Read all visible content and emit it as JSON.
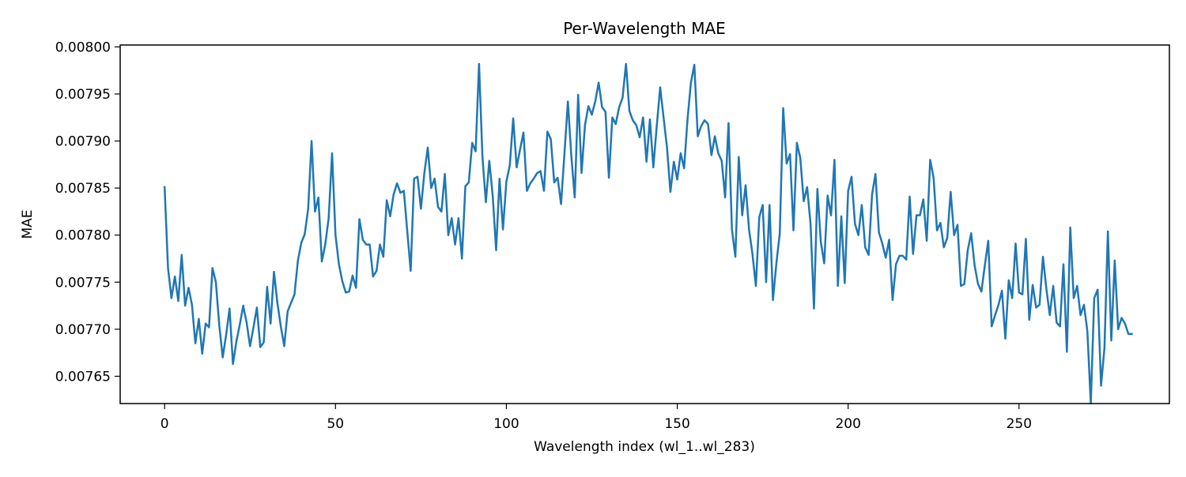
{
  "chart_data": {
    "type": "line",
    "title": "Per-Wavelength MAE",
    "xlabel": "Wavelength index (wl_1..wl_283)",
    "ylabel": "MAE",
    "xlim": [
      -13,
      294
    ],
    "ylim": [
      0.007621,
      0.008002
    ],
    "xticks": [
      0,
      50,
      100,
      150,
      200,
      250
    ],
    "xtick_labels": [
      "0",
      "50",
      "100",
      "150",
      "200",
      "250"
    ],
    "yticks": [
      0.00765,
      0.0077,
      0.00775,
      0.0078,
      0.00785,
      0.0079,
      0.00795,
      0.008
    ],
    "ytick_labels": [
      "0.00765",
      "0.00770",
      "0.00775",
      "0.00780",
      "0.00785",
      "0.00790",
      "0.00795",
      "0.00800"
    ],
    "grid": false,
    "legend": null,
    "series": [
      {
        "color": "#1f77b4",
        "x_start": 0,
        "x_step": 1,
        "values": [
          0.007851,
          0.007765,
          0.007733,
          0.007756,
          0.00773,
          0.007779,
          0.007725,
          0.007744,
          0.007726,
          0.007685,
          0.007711,
          0.007674,
          0.007706,
          0.007702,
          0.007765,
          0.00775,
          0.007704,
          0.00767,
          0.007694,
          0.007722,
          0.007663,
          0.007687,
          0.007705,
          0.007725,
          0.007707,
          0.007682,
          0.007702,
          0.007723,
          0.007681,
          0.007686,
          0.007745,
          0.007706,
          0.007761,
          0.007728,
          0.007703,
          0.007682,
          0.007719,
          0.007728,
          0.007737,
          0.007773,
          0.007792,
          0.007801,
          0.007828,
          0.0079,
          0.007825,
          0.00784,
          0.007772,
          0.00779,
          0.007818,
          0.007887,
          0.0078,
          0.007769,
          0.007751,
          0.007739,
          0.00774,
          0.007757,
          0.007744,
          0.007817,
          0.007795,
          0.00779,
          0.00779,
          0.007756,
          0.007762,
          0.00779,
          0.007777,
          0.007837,
          0.00782,
          0.007843,
          0.007855,
          0.007845,
          0.007847,
          0.007804,
          0.007762,
          0.00786,
          0.007862,
          0.007828,
          0.007866,
          0.007893,
          0.00785,
          0.00786,
          0.00783,
          0.007825,
          0.007865,
          0.0078,
          0.007818,
          0.00779,
          0.007818,
          0.007775,
          0.007852,
          0.007856,
          0.007898,
          0.007889,
          0.007982,
          0.007883,
          0.007835,
          0.007879,
          0.007842,
          0.007784,
          0.00786,
          0.007806,
          0.007857,
          0.007874,
          0.007924,
          0.007872,
          0.007891,
          0.007909,
          0.007847,
          0.007855,
          0.00786,
          0.007866,
          0.007868,
          0.007847,
          0.00791,
          0.007902,
          0.007856,
          0.007861,
          0.007833,
          0.007887,
          0.007942,
          0.007884,
          0.00784,
          0.007949,
          0.007866,
          0.007917,
          0.007937,
          0.007928,
          0.007942,
          0.007962,
          0.007936,
          0.007931,
          0.007861,
          0.007925,
          0.007918,
          0.007936,
          0.007946,
          0.007982,
          0.007932,
          0.007922,
          0.007917,
          0.007904,
          0.007925,
          0.007878,
          0.007923,
          0.007872,
          0.007916,
          0.007957,
          0.007925,
          0.007893,
          0.007846,
          0.007878,
          0.007859,
          0.007887,
          0.007871,
          0.007923,
          0.007962,
          0.007981,
          0.007905,
          0.007916,
          0.007922,
          0.007918,
          0.007885,
          0.007905,
          0.007887,
          0.007879,
          0.00784,
          0.007919,
          0.007806,
          0.007777,
          0.007883,
          0.007821,
          0.007853,
          0.007806,
          0.00778,
          0.007746,
          0.007819,
          0.007832,
          0.00775,
          0.007832,
          0.007731,
          0.00777,
          0.007802,
          0.007935,
          0.007876,
          0.007886,
          0.007805,
          0.007898,
          0.007882,
          0.007836,
          0.007851,
          0.007812,
          0.007722,
          0.007849,
          0.007793,
          0.00777,
          0.007842,
          0.007821,
          0.00788,
          0.007746,
          0.00782,
          0.007749,
          0.007847,
          0.007862,
          0.007812,
          0.0078,
          0.007832,
          0.007787,
          0.007779,
          0.007843,
          0.007865,
          0.007803,
          0.007791,
          0.007776,
          0.007795,
          0.007731,
          0.007769,
          0.007778,
          0.007778,
          0.007774,
          0.007841,
          0.00778,
          0.007821,
          0.007821,
          0.007838,
          0.007794,
          0.00788,
          0.007861,
          0.007805,
          0.007813,
          0.007787,
          0.007797,
          0.007846,
          0.0078,
          0.007811,
          0.007746,
          0.007748,
          0.007784,
          0.007802,
          0.007768,
          0.007748,
          0.00774,
          0.007768,
          0.007794,
          0.007703,
          0.007715,
          0.007726,
          0.007741,
          0.00769,
          0.007752,
          0.007733,
          0.007791,
          0.007739,
          0.007737,
          0.007796,
          0.00771,
          0.007747,
          0.007723,
          0.007726,
          0.007777,
          0.007743,
          0.007715,
          0.007746,
          0.007707,
          0.007703,
          0.007769,
          0.007676,
          0.007808,
          0.007733,
          0.007746,
          0.007715,
          0.007726,
          0.007698,
          0.007621,
          0.007733,
          0.007742,
          0.00764,
          0.00768,
          0.007804,
          0.007688,
          0.007773,
          0.0077,
          0.007712,
          0.007706,
          0.007695,
          0.007695
        ]
      }
    ]
  }
}
